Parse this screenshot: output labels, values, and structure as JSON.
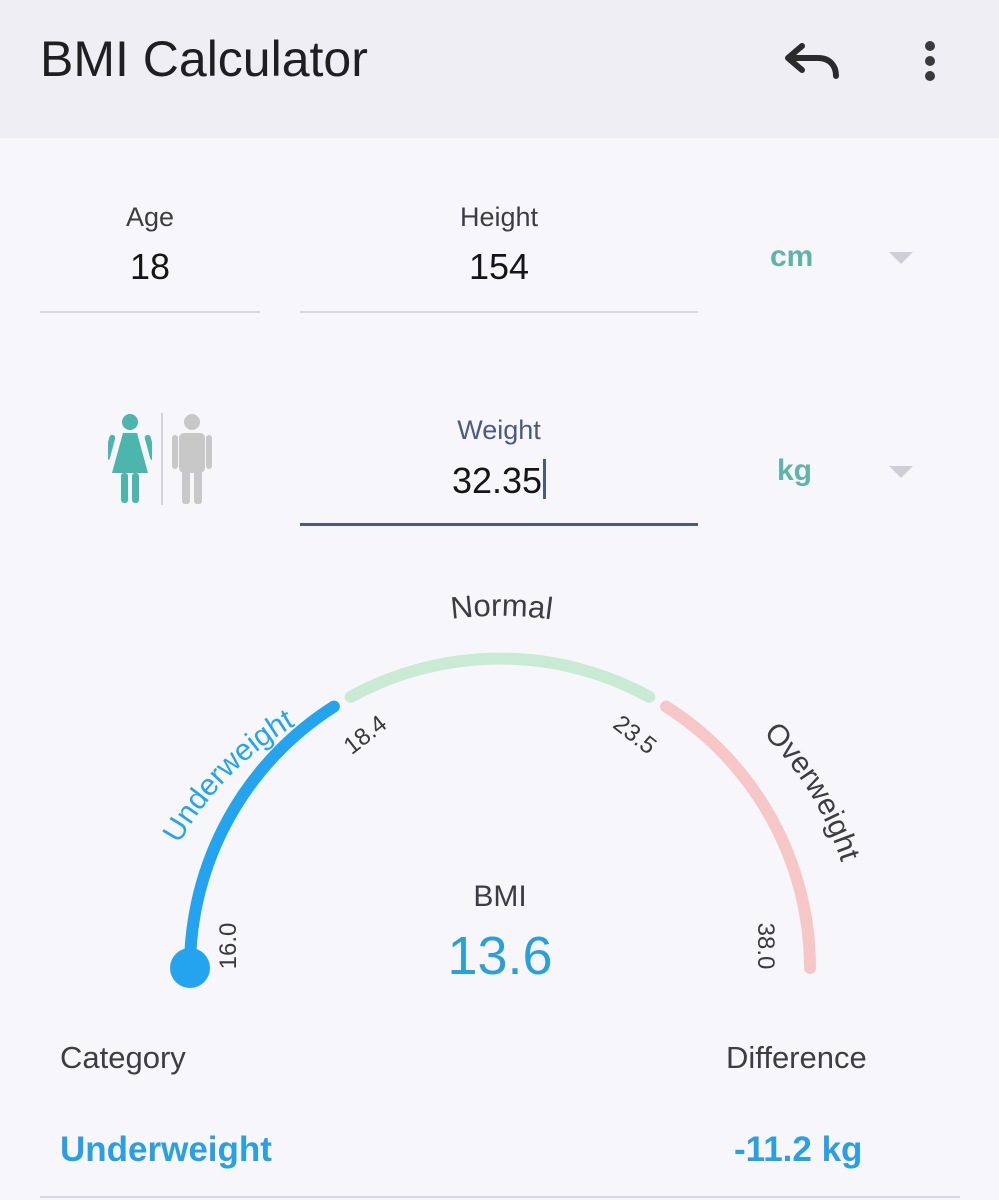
{
  "app": {
    "title": "BMI Calculator"
  },
  "toolbar": {
    "undo_icon": "undo-icon",
    "more_icon": "more-vert-icon"
  },
  "inputs": {
    "age": {
      "label": "Age",
      "value": "18"
    },
    "height": {
      "label": "Height",
      "value": "154",
      "unit": "cm"
    },
    "weight": {
      "label": "Weight",
      "value": "32.35",
      "unit": "kg"
    }
  },
  "gender": {
    "selected": "female",
    "female_color": "#4db6ac",
    "male_color": "#c8c8c8"
  },
  "gauge": {
    "labels": {
      "underweight": "Underweight",
      "normal": "Normal",
      "overweight": "Overweight"
    },
    "ticks": {
      "t1": "16.0",
      "t2": "18.4",
      "t3": "23.5",
      "t4": "38.0"
    },
    "colors": {
      "underweight": "#24a4ef",
      "normal": "#c9ead3",
      "overweight": "#f7c7c7"
    },
    "indicator_value": 13.6
  },
  "bmi": {
    "label": "BMI",
    "value": "13.6"
  },
  "result": {
    "category_label": "Category",
    "category_value": "Underweight",
    "difference_label": "Difference",
    "difference_value": "-11.2 kg"
  }
}
